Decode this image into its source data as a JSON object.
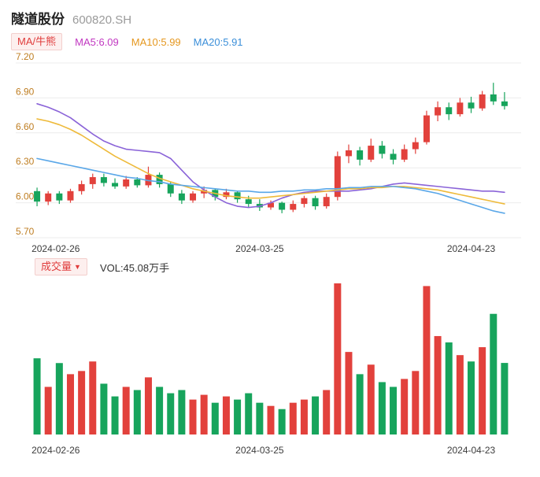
{
  "header": {
    "title": "隧道股份",
    "code": "600820.SH"
  },
  "legend": {
    "ma_badge": "MA/牛熊",
    "ma5": "MA5:6.09",
    "ma10": "MA10:5.99",
    "ma20": "MA20:5.91"
  },
  "volume_header": {
    "badge": "成交量",
    "caret": "▼",
    "vol_label": "VOL:45.08万手"
  },
  "colors": {
    "up": "#e2413c",
    "down": "#17a45c",
    "ma5_line": "#8a63d8",
    "ma10_line": "#eebA3a",
    "ma20_line": "#5aa7e8",
    "ma5_text": "#c137c1",
    "ma10_text": "#e5971e",
    "ma20_text": "#3b8fd9",
    "badge_text": "#e03c3c",
    "badge_bg": "#fdefee",
    "axis_label": "#bf7e22",
    "date_label": "#3c3c3c",
    "grid": "#ececec"
  },
  "chart_data": {
    "type": "candlestick+volume",
    "title": "隧道股份 600820.SH",
    "ylim": [
      5.7,
      7.2
    ],
    "y_ticks": [
      7.2,
      6.9,
      6.6,
      6.3,
      6.0,
      5.7
    ],
    "x_tick_labels": [
      "2024-02-26",
      "2024-03-25",
      "2024-04-23"
    ],
    "x_tick_indices": [
      0,
      20,
      39
    ],
    "volume_unit": "万手",
    "dates": [
      "2024-02-26",
      "2024-02-27",
      "2024-02-28",
      "2024-02-29",
      "2024-03-01",
      "2024-03-04",
      "2024-03-05",
      "2024-03-06",
      "2024-03-07",
      "2024-03-08",
      "2024-03-11",
      "2024-03-12",
      "2024-03-13",
      "2024-03-14",
      "2024-03-15",
      "2024-03-18",
      "2024-03-19",
      "2024-03-20",
      "2024-03-21",
      "2024-03-22",
      "2024-03-25",
      "2024-03-26",
      "2024-03-27",
      "2024-03-28",
      "2024-03-29",
      "2024-04-01",
      "2024-04-02",
      "2024-04-03",
      "2024-04-08",
      "2024-04-09",
      "2024-04-10",
      "2024-04-11",
      "2024-04-12",
      "2024-04-15",
      "2024-04-16",
      "2024-04-17",
      "2024-04-18",
      "2024-04-19",
      "2024-04-22",
      "2024-04-23",
      "2024-04-24",
      "2024-04-25",
      "2024-04-26"
    ],
    "open": [
      6.1,
      6.01,
      6.08,
      6.02,
      6.1,
      6.16,
      6.22,
      6.17,
      6.14,
      6.2,
      6.15,
      6.24,
      6.16,
      6.08,
      6.02,
      6.08,
      6.11,
      6.05,
      6.09,
      6.03,
      5.99,
      5.96,
      6.0,
      5.94,
      5.99,
      6.04,
      5.97,
      6.05,
      6.4,
      6.45,
      6.37,
      6.49,
      6.42,
      6.37,
      6.46,
      6.52,
      6.75,
      6.82,
      6.76,
      6.86,
      6.81,
      6.93,
      6.87
    ],
    "high": [
      6.13,
      6.1,
      6.1,
      6.12,
      6.19,
      6.25,
      6.25,
      6.21,
      6.23,
      6.22,
      6.31,
      6.26,
      6.18,
      6.11,
      6.1,
      6.14,
      6.12,
      6.12,
      6.1,
      6.06,
      6.03,
      6.02,
      6.01,
      6.02,
      6.06,
      6.06,
      6.08,
      6.44,
      6.5,
      6.48,
      6.55,
      6.53,
      6.46,
      6.5,
      6.56,
      6.79,
      6.87,
      6.86,
      6.9,
      6.91,
      6.96,
      7.03,
      6.95
    ],
    "low": [
      5.97,
      5.98,
      5.99,
      6.0,
      6.07,
      6.12,
      6.14,
      6.12,
      6.12,
      6.13,
      6.13,
      6.13,
      6.05,
      5.99,
      6.0,
      6.04,
      6.02,
      6.03,
      6.0,
      5.96,
      5.93,
      5.94,
      5.91,
      5.92,
      5.96,
      5.94,
      5.95,
      6.02,
      6.34,
      6.32,
      6.35,
      6.38,
      6.33,
      6.35,
      6.42,
      6.5,
      6.7,
      6.71,
      6.74,
      6.77,
      6.79,
      6.84,
      6.8
    ],
    "close": [
      6.01,
      6.08,
      6.02,
      6.1,
      6.16,
      6.22,
      6.17,
      6.14,
      6.2,
      6.15,
      6.24,
      6.16,
      6.08,
      6.02,
      6.08,
      6.11,
      6.05,
      6.09,
      6.03,
      5.99,
      5.96,
      6.0,
      5.94,
      5.99,
      6.04,
      5.97,
      6.05,
      6.4,
      6.45,
      6.37,
      6.49,
      6.42,
      6.37,
      6.46,
      6.52,
      6.75,
      6.82,
      6.76,
      6.86,
      6.81,
      6.93,
      6.87,
      6.83
    ],
    "volume": [
      48,
      30,
      45,
      38,
      40,
      46,
      32,
      24,
      30,
      28,
      36,
      30,
      26,
      28,
      22,
      25,
      20,
      24,
      22,
      26,
      20,
      18,
      16,
      20,
      22,
      24,
      28,
      95.2,
      52,
      38,
      44,
      33,
      30,
      35,
      40,
      93.5,
      62,
      58,
      50,
      46,
      55,
      76,
      45.08
    ],
    "ma5": [
      6.85,
      6.82,
      6.78,
      6.73,
      6.66,
      6.59,
      6.53,
      6.49,
      6.46,
      6.45,
      6.44,
      6.43,
      6.38,
      6.28,
      6.18,
      6.11,
      6.05,
      6.0,
      5.97,
      5.96,
      5.97,
      6.0,
      6.04,
      6.07,
      6.09,
      6.1,
      6.1,
      6.1,
      6.1,
      6.11,
      6.12,
      6.14,
      6.16,
      6.17,
      6.16,
      6.15,
      6.14,
      6.13,
      6.12,
      6.11,
      6.1,
      6.1,
      6.09
    ],
    "ma10": [
      6.72,
      6.7,
      6.67,
      6.63,
      6.58,
      6.52,
      6.46,
      6.4,
      6.35,
      6.3,
      6.25,
      6.21,
      6.18,
      6.15,
      6.12,
      6.1,
      6.08,
      6.06,
      6.05,
      6.04,
      6.04,
      6.05,
      6.06,
      6.07,
      6.08,
      6.09,
      6.1,
      6.11,
      6.12,
      6.12,
      6.13,
      6.13,
      6.14,
      6.14,
      6.13,
      6.12,
      6.11,
      6.09,
      6.07,
      6.05,
      6.03,
      6.01,
      5.99
    ],
    "ma20": [
      6.38,
      6.36,
      6.34,
      6.32,
      6.3,
      6.28,
      6.26,
      6.24,
      6.22,
      6.21,
      6.19,
      6.18,
      6.16,
      6.15,
      6.14,
      6.13,
      6.12,
      6.11,
      6.1,
      6.1,
      6.09,
      6.09,
      6.1,
      6.1,
      6.11,
      6.11,
      6.12,
      6.12,
      6.13,
      6.13,
      6.14,
      6.14,
      6.14,
      6.13,
      6.12,
      6.1,
      6.08,
      6.05,
      6.02,
      5.99,
      5.96,
      5.93,
      5.91
    ]
  }
}
